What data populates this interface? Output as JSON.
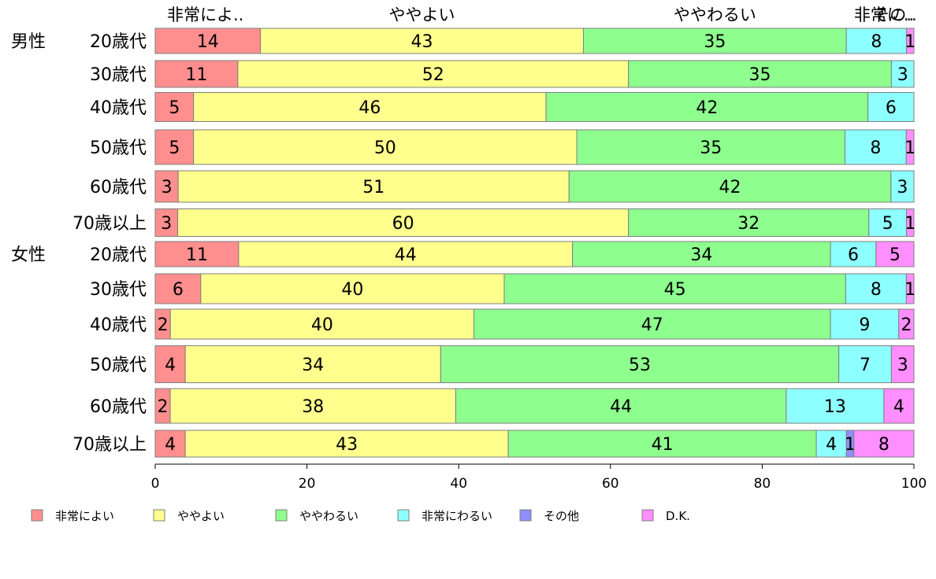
{
  "chart_data": {
    "type": "bar",
    "orientation": "horizontal",
    "stacked": true,
    "xlim": [
      0,
      100
    ],
    "xticks": [
      0,
      20,
      40,
      60,
      80,
      100
    ],
    "grid": false,
    "legend_position": "bottom",
    "top_labels": [
      "非常によ..",
      "ややよい",
      "ややわるい",
      "非常に..",
      "その.."
    ],
    "groups": [
      {
        "label": "男性",
        "start": 0
      },
      {
        "label": "女性",
        "start": 6
      }
    ],
    "categories": [
      "20歳代",
      "30歳代",
      "40歳代",
      "50歳代",
      "60歳代",
      "70歳以上",
      "20歳代",
      "30歳代",
      "40歳代",
      "50歳代",
      "60歳代",
      "70歳以上"
    ],
    "series": [
      {
        "name": "非常によい",
        "color": "#ff8e8e",
        "values": [
          14,
          11,
          5,
          5,
          3,
          3,
          11,
          6,
          2,
          4,
          2,
          4
        ]
      },
      {
        "name": "ややよい",
        "color": "#ffff8e",
        "values": [
          43,
          52,
          46,
          50,
          51,
          60,
          44,
          40,
          40,
          34,
          38,
          43
        ]
      },
      {
        "name": "ややわるい",
        "color": "#8eff8e",
        "values": [
          35,
          35,
          42,
          35,
          42,
          32,
          34,
          45,
          47,
          53,
          44,
          41
        ]
      },
      {
        "name": "非常にわるい",
        "color": "#8effff",
        "values": [
          8,
          3,
          6,
          8,
          3,
          5,
          6,
          8,
          9,
          7,
          13,
          4
        ]
      },
      {
        "name": "その他",
        "color": "#8e8eff",
        "values": [
          0,
          0,
          0,
          0,
          0,
          0,
          0,
          0,
          0,
          0,
          0,
          1
        ]
      },
      {
        "name": "D.K.",
        "color": "#ff8eff",
        "values": [
          1,
          0,
          0,
          1,
          0,
          1,
          5,
          1,
          2,
          3,
          4,
          8
        ]
      }
    ],
    "shown_values": [
      [
        14,
        43,
        35,
        8,
        null,
        1
      ],
      [
        11,
        52,
        35,
        3,
        null,
        null
      ],
      [
        5,
        46,
        42,
        6,
        null,
        null
      ],
      [
        5,
        50,
        35,
        8,
        null,
        1
      ],
      [
        3,
        51,
        42,
        3,
        null,
        null
      ],
      [
        3,
        60,
        32,
        5,
        null,
        1
      ],
      [
        11,
        44,
        34,
        6,
        null,
        5
      ],
      [
        6,
        40,
        45,
        8,
        null,
        1
      ],
      [
        2,
        40,
        47,
        9,
        null,
        2
      ],
      [
        4,
        34,
        53,
        7,
        null,
        3
      ],
      [
        2,
        38,
        44,
        13,
        null,
        4
      ],
      [
        4,
        43,
        41,
        4,
        1,
        8
      ]
    ]
  }
}
